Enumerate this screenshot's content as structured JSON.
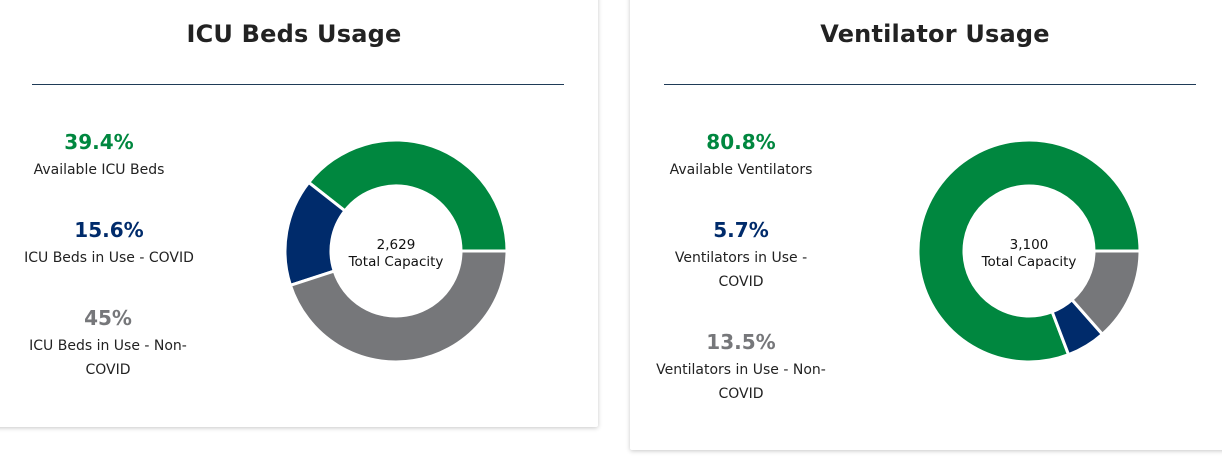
{
  "colors": {
    "available": "#00873f",
    "covid": "#002b6b",
    "non_covid": "#76777a",
    "divider": "#1f3b57"
  },
  "icu": {
    "title": "ICU Beds Usage",
    "stats": [
      {
        "pct": "39.4%",
        "label": "Available ICU Beds"
      },
      {
        "pct": "15.6%",
        "label": "ICU Beds in Use - COVID"
      },
      {
        "pct": "45%",
        "label": "ICU Beds in Use - Non-COVID"
      }
    ],
    "center_value": "2,629",
    "center_label": "Total Capacity"
  },
  "ventilator": {
    "title": "Ventilator Usage",
    "stats": [
      {
        "pct": "80.8%",
        "label": "Available Ventilators"
      },
      {
        "pct": "5.7%",
        "label": "Ventilators in Use - COVID"
      },
      {
        "pct": "13.5%",
        "label": "Ventilators in Use - Non-COVID"
      }
    ],
    "center_value": "3,100",
    "center_label": "Total Capacity"
  },
  "chart_data": [
    {
      "type": "pie",
      "title": "ICU Beds Usage",
      "categories": [
        "Available ICU Beds",
        "ICU Beds in Use - COVID",
        "ICU Beds in Use - Non-COVID"
      ],
      "values": [
        39.4,
        15.6,
        45
      ],
      "colors": [
        "#00873f",
        "#002b6b",
        "#76777a"
      ]
    },
    {
      "type": "pie",
      "title": "Ventilator Usage",
      "categories": [
        "Available Ventilators",
        "Ventilators in Use - COVID",
        "Ventilators in Use - Non-COVID"
      ],
      "values": [
        80.8,
        5.7,
        13.5
      ],
      "colors": [
        "#00873f",
        "#002b6b",
        "#76777a"
      ]
    }
  ]
}
